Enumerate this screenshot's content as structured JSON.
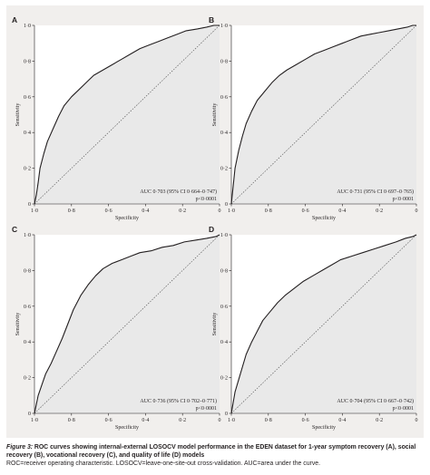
{
  "colors": {
    "figure_background": "#f1efed",
    "plot_fill": "#e9e9e9",
    "plot_background": "#ffffff",
    "curve": "#231f20",
    "diagonal": "#555555"
  },
  "caption": {
    "label": "Figure 3:",
    "title": "ROC curves showing internal-external LOSOCV model performance in the EDEN dataset for 1-year symptom recovery (A), social recovery (B), vocational recovery (C), and quality of life (D) models",
    "note": "ROC=receiver operating characteristic. LOSOCV=leave-one-site-out cross-validation. AUC=area under the curve."
  },
  "chart_data": [
    {
      "type": "line",
      "panel": "A",
      "xlabel": "Specificity",
      "ylabel": "Sensitivity",
      "x_reversed": true,
      "xlim": [
        1.0,
        0.0
      ],
      "ylim": [
        0.0,
        1.0
      ],
      "xticks": [
        "1·0",
        "0·8",
        "0·6",
        "0·4",
        "0·2",
        "0"
      ],
      "yticks": [
        "0",
        "0·2",
        "0·4",
        "0·6",
        "0·8",
        "1·0"
      ],
      "auc_line1": "AUC 0·703 (95% CI 0·664–0·747)",
      "auc_line2": "p<0·0001",
      "reference_line": true,
      "series": [
        {
          "x": [
            1.0,
            0.99,
            0.98,
            0.97,
            0.95,
            0.93,
            0.9,
            0.87,
            0.84,
            0.8,
            0.76,
            0.72,
            0.68,
            0.63,
            0.58,
            0.53,
            0.48,
            0.43,
            0.38,
            0.33,
            0.28,
            0.23,
            0.18,
            0.12,
            0.07,
            0.03,
            0.0
          ],
          "y": [
            0.0,
            0.05,
            0.12,
            0.2,
            0.28,
            0.35,
            0.42,
            0.49,
            0.55,
            0.6,
            0.64,
            0.68,
            0.72,
            0.75,
            0.78,
            0.81,
            0.84,
            0.87,
            0.89,
            0.91,
            0.93,
            0.95,
            0.97,
            0.98,
            0.99,
            1.0,
            1.0
          ]
        }
      ]
    },
    {
      "type": "line",
      "panel": "B",
      "xlabel": "Specificity",
      "ylabel": "Sensitivity",
      "x_reversed": true,
      "xlim": [
        1.0,
        0.0
      ],
      "ylim": [
        0.0,
        1.0
      ],
      "xticks": [
        "1·0",
        "0·8",
        "0·6",
        "0·4",
        "0·2",
        "0"
      ],
      "yticks": [
        "0",
        "0·2",
        "0·4",
        "0·6",
        "0·8",
        "1·0"
      ],
      "auc_line1": "AUC 0·731 (95% CI 0·697–0·765)",
      "auc_line2": "p<0·0001",
      "reference_line": true,
      "series": [
        {
          "x": [
            1.0,
            0.99,
            0.98,
            0.96,
            0.94,
            0.92,
            0.89,
            0.86,
            0.82,
            0.78,
            0.74,
            0.7,
            0.65,
            0.6,
            0.55,
            0.5,
            0.45,
            0.4,
            0.35,
            0.3,
            0.25,
            0.2,
            0.15,
            0.1,
            0.05,
            0.02,
            0.0
          ],
          "y": [
            0.0,
            0.1,
            0.2,
            0.3,
            0.38,
            0.45,
            0.52,
            0.58,
            0.63,
            0.68,
            0.72,
            0.75,
            0.78,
            0.81,
            0.84,
            0.86,
            0.88,
            0.9,
            0.92,
            0.94,
            0.95,
            0.96,
            0.97,
            0.98,
            0.99,
            1.0,
            1.0
          ]
        }
      ]
    },
    {
      "type": "line",
      "panel": "C",
      "xlabel": "Specificity",
      "ylabel": "Sensitivity",
      "x_reversed": true,
      "xlim": [
        1.0,
        0.0
      ],
      "ylim": [
        0.0,
        1.0
      ],
      "xticks": [
        "1·0",
        "0·8",
        "0·6",
        "0·4",
        "0·2",
        "0"
      ],
      "yticks": [
        "0",
        "0·2",
        "0·4",
        "0·6",
        "0·8",
        "1·0"
      ],
      "auc_line1": "AUC 0·736 (95% CI 0·702–0·771)",
      "auc_line2": "p<0·0001",
      "reference_line": true,
      "series": [
        {
          "x": [
            1.0,
            0.99,
            0.98,
            0.96,
            0.94,
            0.91,
            0.88,
            0.85,
            0.82,
            0.79,
            0.75,
            0.71,
            0.67,
            0.63,
            0.58,
            0.53,
            0.48,
            0.43,
            0.37,
            0.31,
            0.25,
            0.19,
            0.13,
            0.07,
            0.02,
            0.0
          ],
          "y": [
            0.0,
            0.05,
            0.1,
            0.16,
            0.22,
            0.28,
            0.35,
            0.42,
            0.5,
            0.58,
            0.66,
            0.72,
            0.77,
            0.81,
            0.84,
            0.86,
            0.88,
            0.9,
            0.91,
            0.93,
            0.94,
            0.96,
            0.97,
            0.98,
            0.99,
            1.0
          ]
        }
      ]
    },
    {
      "type": "line",
      "panel": "D",
      "xlabel": "Specificity",
      "ylabel": "Sensitivity",
      "x_reversed": true,
      "xlim": [
        1.0,
        0.0
      ],
      "ylim": [
        0.0,
        1.0
      ],
      "xticks": [
        "1·0",
        "0·8",
        "0·6",
        "0·4",
        "0·2",
        "0"
      ],
      "yticks": [
        "0",
        "0·2",
        "0·4",
        "0·6",
        "0·8",
        "1·0"
      ],
      "auc_line1": "AUC 0·704 (95% CI 0·667–0·742)",
      "auc_line2": "p<0·0001",
      "reference_line": true,
      "series": [
        {
          "x": [
            1.0,
            0.99,
            0.98,
            0.96,
            0.94,
            0.92,
            0.89,
            0.86,
            0.83,
            0.79,
            0.75,
            0.71,
            0.66,
            0.61,
            0.56,
            0.51,
            0.46,
            0.41,
            0.35,
            0.29,
            0.23,
            0.17,
            0.11,
            0.06,
            0.02,
            0.0
          ],
          "y": [
            0.0,
            0.06,
            0.12,
            0.19,
            0.26,
            0.33,
            0.4,
            0.46,
            0.52,
            0.57,
            0.62,
            0.66,
            0.7,
            0.74,
            0.77,
            0.8,
            0.83,
            0.86,
            0.88,
            0.9,
            0.92,
            0.94,
            0.96,
            0.98,
            0.99,
            1.0
          ]
        }
      ]
    }
  ]
}
